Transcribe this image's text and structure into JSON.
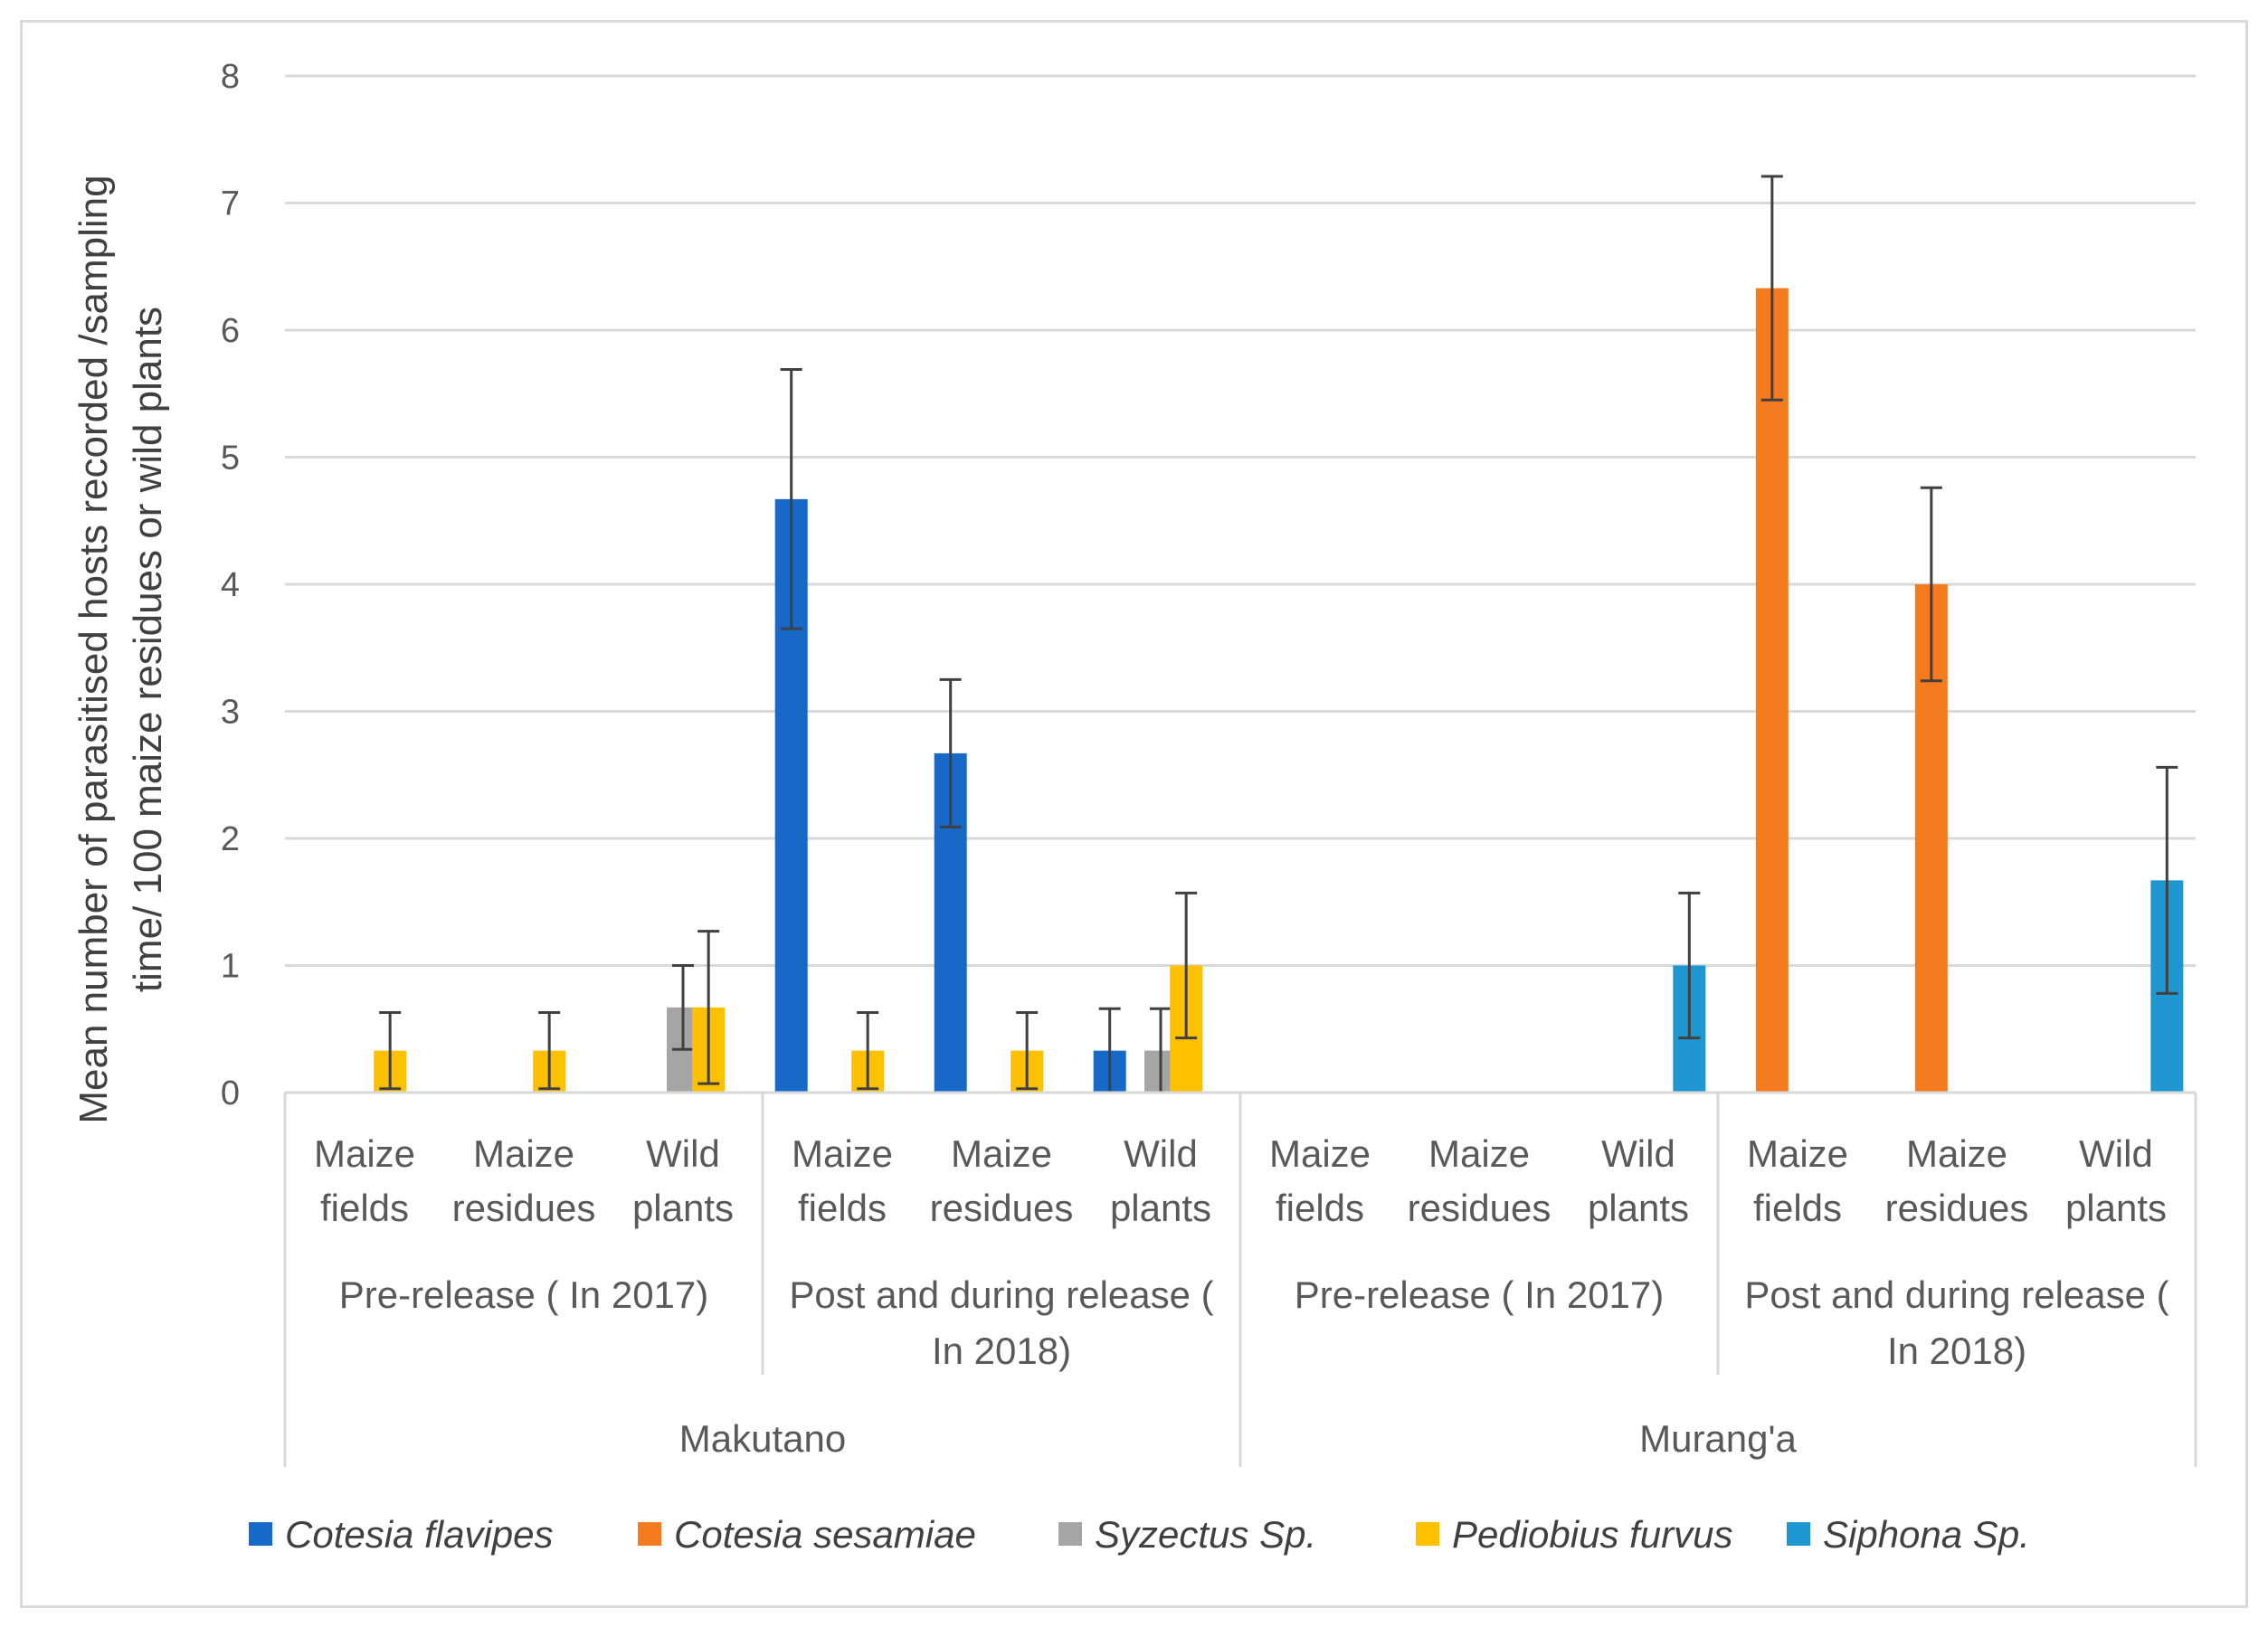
{
  "chart_data": {
    "type": "bar",
    "title": "",
    "ylabel_lines": [
      "Mean number of parasitised hosts recorded /sampling",
      "time/ 100 maize residues or wild plants"
    ],
    "ylim": [
      0,
      8
    ],
    "yticks": [
      "0",
      "1",
      "2",
      "3",
      "4",
      "5",
      "6",
      "7",
      "8"
    ],
    "grid": true,
    "sites": [
      {
        "label": "Makutano",
        "periods": [
          {
            "label_lines": [
              "Pre-release ( In 2017)"
            ],
            "categories": [
              {
                "lines": [
                  "Maize",
                  "fields"
                ],
                "values": [
                  null,
                  null,
                  null,
                  0.33,
                  null
                ],
                "errors": [
                  null,
                  null,
                  null,
                  0.3,
                  null
                ]
              },
              {
                "lines": [
                  "Maize",
                  "residues"
                ],
                "values": [
                  null,
                  null,
                  null,
                  0.33,
                  null
                ],
                "errors": [
                  null,
                  null,
                  null,
                  0.3,
                  null
                ]
              },
              {
                "lines": [
                  "Wild",
                  "plants"
                ],
                "values": [
                  null,
                  null,
                  0.67,
                  0.67,
                  null
                ],
                "errors": [
                  null,
                  null,
                  0.33,
                  0.6,
                  null
                ]
              }
            ]
          },
          {
            "label_lines": [
              "Post and during release (",
              "In 2018)"
            ],
            "categories": [
              {
                "lines": [
                  "Maize",
                  "fields"
                ],
                "values": [
                  4.67,
                  null,
                  null,
                  0.33,
                  null
                ],
                "errors": [
                  1.02,
                  null,
                  null,
                  0.3,
                  null
                ]
              },
              {
                "lines": [
                  "Maize",
                  "residues"
                ],
                "values": [
                  2.67,
                  null,
                  null,
                  0.33,
                  null
                ],
                "errors": [
                  0.58,
                  null,
                  null,
                  0.3,
                  null
                ]
              },
              {
                "lines": [
                  "Wild",
                  "plants"
                ],
                "values": [
                  0.33,
                  null,
                  0.33,
                  1.0,
                  null
                ],
                "errors": [
                  0.33,
                  null,
                  0.33,
                  0.57,
                  null
                ]
              }
            ]
          }
        ]
      },
      {
        "label": "Murang'a",
        "periods": [
          {
            "label_lines": [
              "Pre-release ( In 2017)"
            ],
            "categories": [
              {
                "lines": [
                  "Maize",
                  "fields"
                ],
                "values": [
                  null,
                  null,
                  null,
                  null,
                  null
                ],
                "errors": [
                  null,
                  null,
                  null,
                  null,
                  null
                ]
              },
              {
                "lines": [
                  "Maize",
                  "residues"
                ],
                "values": [
                  null,
                  null,
                  null,
                  null,
                  null
                ],
                "errors": [
                  null,
                  null,
                  null,
                  null,
                  null
                ]
              },
              {
                "lines": [
                  "Wild",
                  "plants"
                ],
                "values": [
                  null,
                  null,
                  null,
                  null,
                  1.0
                ],
                "errors": [
                  null,
                  null,
                  null,
                  null,
                  0.57
                ]
              }
            ]
          },
          {
            "label_lines": [
              "Post and during release (",
              "In 2018)"
            ],
            "categories": [
              {
                "lines": [
                  "Maize",
                  "fields"
                ],
                "values": [
                  null,
                  6.33,
                  null,
                  null,
                  null
                ],
                "errors": [
                  null,
                  0.88,
                  null,
                  null,
                  null
                ]
              },
              {
                "lines": [
                  "Maize",
                  "residues"
                ],
                "values": [
                  null,
                  4.0,
                  null,
                  null,
                  null
                ],
                "errors": [
                  null,
                  0.76,
                  null,
                  null,
                  null
                ]
              },
              {
                "lines": [
                  "Wild",
                  "plants"
                ],
                "values": [
                  null,
                  null,
                  null,
                  null,
                  1.67
                ],
                "errors": [
                  null,
                  null,
                  null,
                  null,
                  0.89
                ]
              }
            ]
          }
        ]
      }
    ],
    "series": [
      {
        "name": "Cotesia flavipes",
        "color": "#1669C7"
      },
      {
        "name": "Cotesia sesamiae",
        "color": "#F47B20"
      },
      {
        "name": "Syzectus Sp.",
        "color": "#A5A5A5"
      },
      {
        "name": "Pediobius furvus",
        "color": "#FFC000"
      },
      {
        "name": "Siphona Sp.",
        "color": "#1E96D2"
      }
    ],
    "legend_position": "bottom"
  }
}
